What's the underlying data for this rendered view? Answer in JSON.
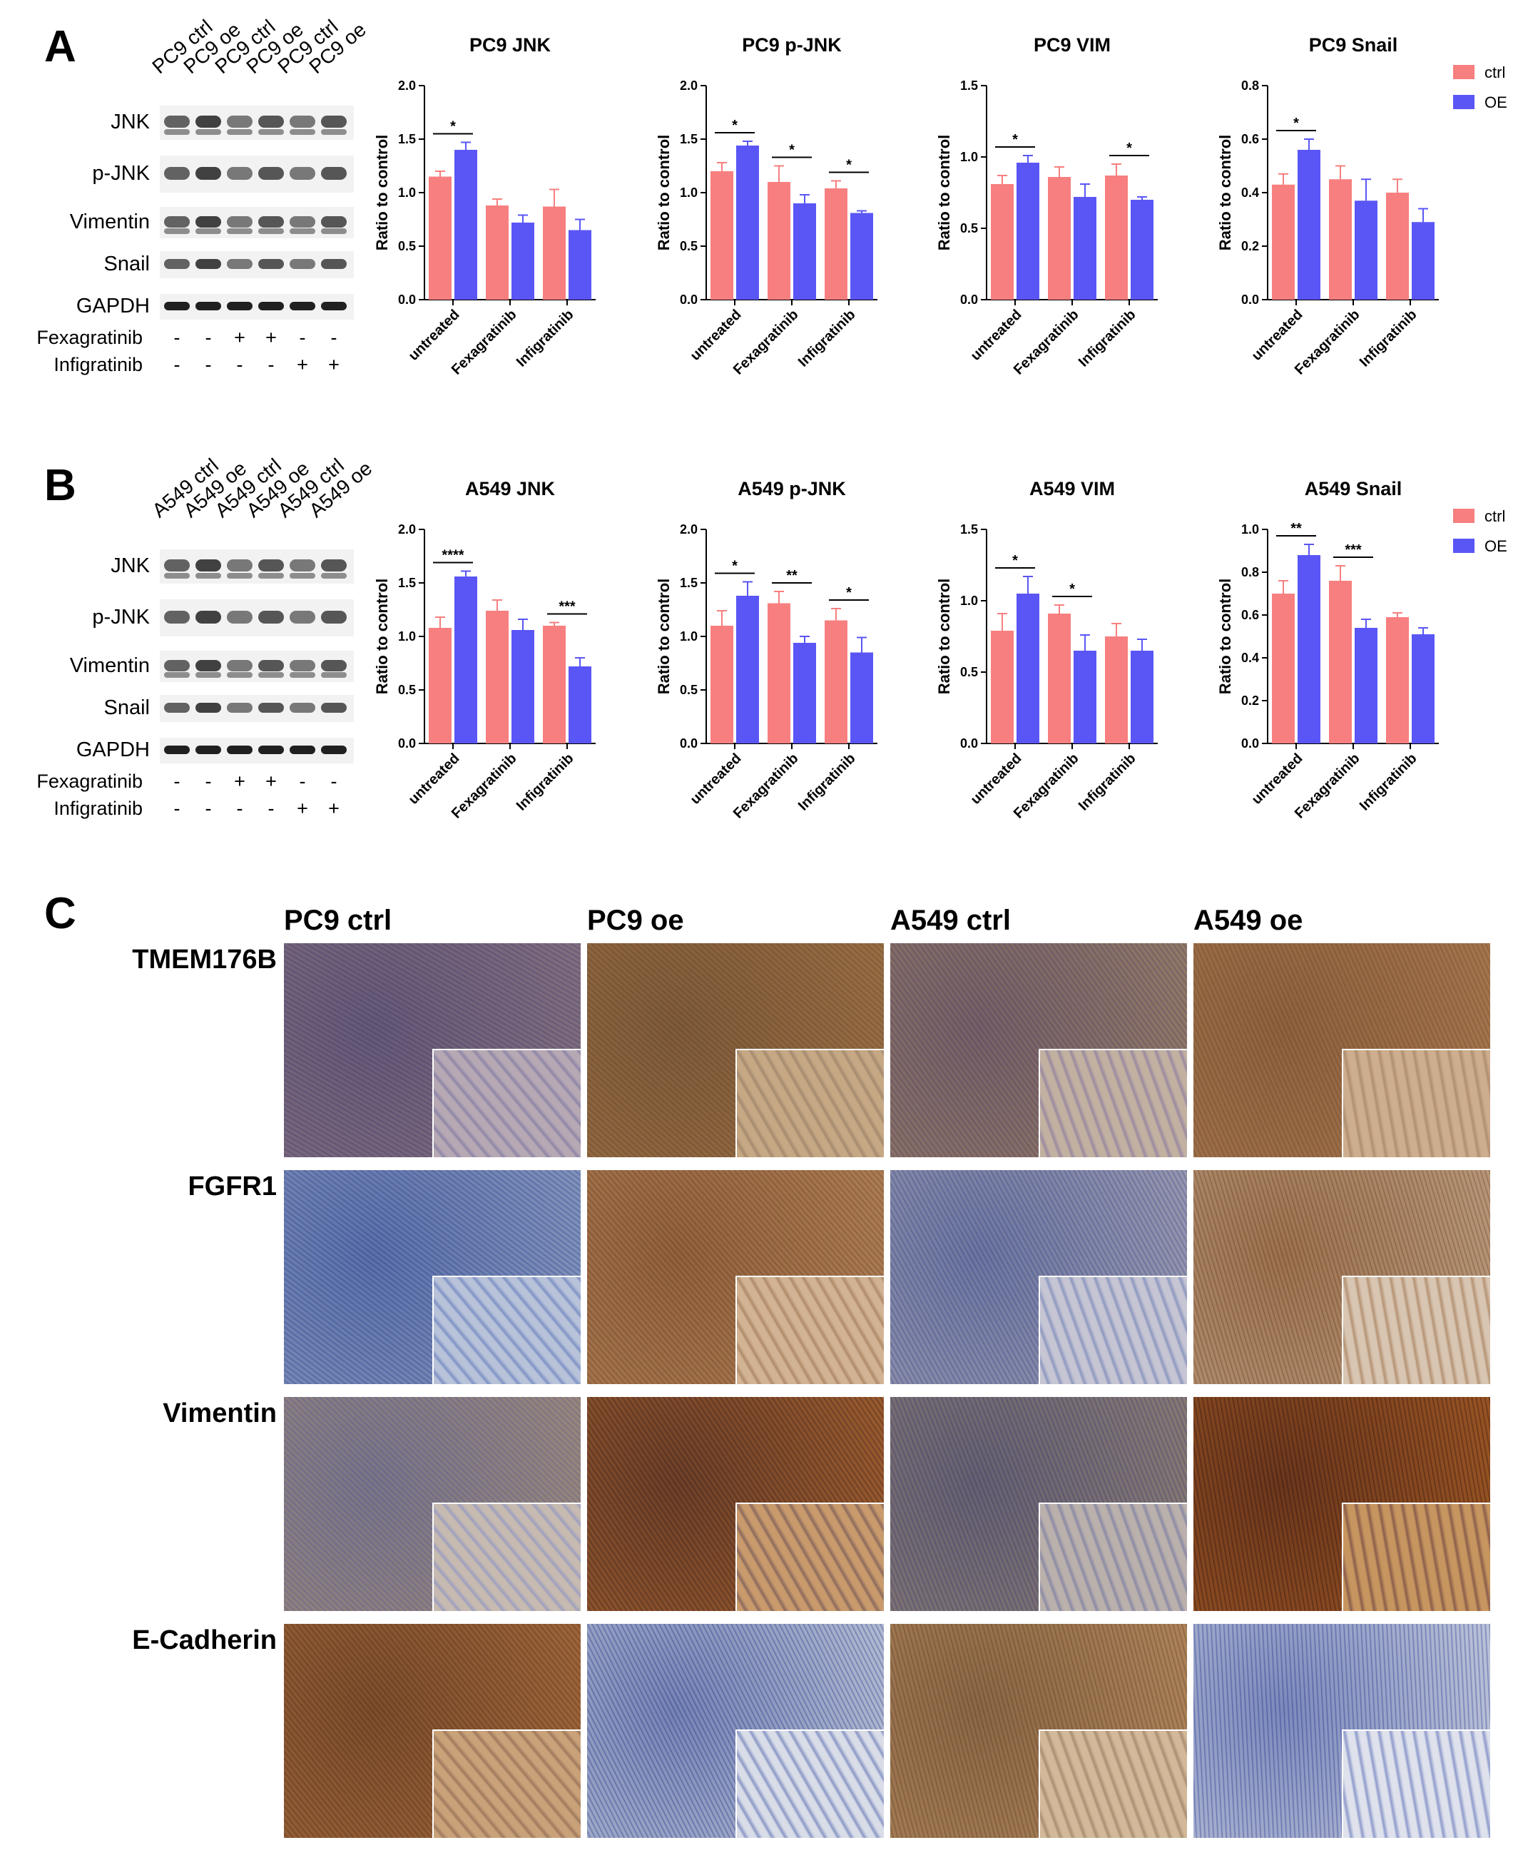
{
  "panels": {
    "A": {
      "letter": "A",
      "lanes": [
        "PC9 ctrl",
        "PC9 oe",
        "PC9 ctrl",
        "PC9 oe",
        "PC9 ctrl",
        "PC9 oe"
      ],
      "blots": [
        "JNK",
        "p-JNK",
        "Vimentin",
        "Snail",
        "GAPDH"
      ],
      "treatments": [
        {
          "name": "Fexagratinib",
          "signs": [
            "-",
            "-",
            "+",
            "+",
            "-",
            "-"
          ]
        },
        {
          "name": "Infigratinib",
          "signs": [
            "-",
            "-",
            "-",
            "-",
            "+",
            "+"
          ]
        }
      ]
    },
    "B": {
      "letter": "B",
      "lanes": [
        "A549 ctrl",
        "A549 oe",
        "A549 ctrl",
        "A549 oe",
        "A549 ctrl",
        "A549 oe"
      ],
      "blots": [
        "JNK",
        "p-JNK",
        "Vimentin",
        "Snail",
        "GAPDH"
      ],
      "treatments": [
        {
          "name": "Fexagratinib",
          "signs": [
            "-",
            "-",
            "+",
            "+",
            "-",
            "-"
          ]
        },
        {
          "name": "Infigratinib",
          "signs": [
            "-",
            "-",
            "-",
            "-",
            "+",
            "+"
          ]
        }
      ]
    },
    "C": {
      "letter": "C",
      "columns": [
        "PC9 ctrl",
        "PC9 oe",
        "A549 ctrl",
        "A549 oe"
      ],
      "rows": [
        "TMEM176B",
        "FGFR1",
        "Vimentin",
        "E-Cadherin"
      ]
    }
  },
  "colors": {
    "ctrl": "#f77f7f",
    "oe": "#5a56f5",
    "axis": "#000000"
  },
  "legend": {
    "ctrl": "ctrl",
    "oe": "OE"
  },
  "chart_data": [
    {
      "type": "bar",
      "title": "PC9 JNK",
      "ylabel": "Ratio to control",
      "ylim": [
        0,
        2.0
      ],
      "ticks": [
        "0.0",
        "0.5",
        "1.0",
        "1.5",
        "2.0"
      ],
      "categories": [
        "untreated",
        "Fexagratinib",
        "Infigratinib"
      ],
      "series": [
        {
          "name": "ctrl",
          "values": [
            1.15,
            0.88,
            0.87
          ],
          "errors": [
            0.05,
            0.06,
            0.16
          ]
        },
        {
          "name": "OE",
          "values": [
            1.4,
            0.72,
            0.65
          ],
          "errors": [
            0.07,
            0.07,
            0.1
          ]
        }
      ],
      "significance": [
        {
          "category": 0,
          "label": "*"
        }
      ],
      "legend": false
    },
    {
      "type": "bar",
      "title": "PC9 p-JNK",
      "ylabel": "Ratio to control",
      "ylim": [
        0,
        2.0
      ],
      "ticks": [
        "0.0",
        "0.5",
        "1.0",
        "1.5",
        "2.0"
      ],
      "categories": [
        "untreated",
        "Fexagratinib",
        "Infigratinib"
      ],
      "series": [
        {
          "name": "ctrl",
          "values": [
            1.2,
            1.1,
            1.04
          ],
          "errors": [
            0.08,
            0.15,
            0.07
          ]
        },
        {
          "name": "OE",
          "values": [
            1.44,
            0.9,
            0.81
          ],
          "errors": [
            0.04,
            0.08,
            0.02
          ]
        }
      ],
      "significance": [
        {
          "category": 0,
          "label": "*"
        },
        {
          "category": 1,
          "label": "*"
        },
        {
          "category": 2,
          "label": "*"
        }
      ],
      "legend": false
    },
    {
      "type": "bar",
      "title": "PC9 VIM",
      "ylabel": "Ratio to control",
      "ylim": [
        0,
        1.5
      ],
      "ticks": [
        "0.0",
        "0.5",
        "1.0",
        "1.5"
      ],
      "categories": [
        "untreated",
        "Fexagratinib",
        "Infigratinib"
      ],
      "series": [
        {
          "name": "ctrl",
          "values": [
            0.81,
            0.86,
            0.87
          ],
          "errors": [
            0.06,
            0.07,
            0.08
          ]
        },
        {
          "name": "OE",
          "values": [
            0.96,
            0.72,
            0.7
          ],
          "errors": [
            0.05,
            0.09,
            0.02
          ]
        }
      ],
      "significance": [
        {
          "category": 0,
          "label": "*"
        },
        {
          "category": 2,
          "label": "*"
        }
      ],
      "legend": false
    },
    {
      "type": "bar",
      "title": "PC9 Snail",
      "ylabel": "Ratio to control",
      "ylim": [
        0,
        0.8
      ],
      "ticks": [
        "0.0",
        "0.2",
        "0.4",
        "0.6",
        "0.8"
      ],
      "categories": [
        "untreated",
        "Fexagratinib",
        "Infigratinib"
      ],
      "series": [
        {
          "name": "ctrl",
          "values": [
            0.43,
            0.45,
            0.4
          ],
          "errors": [
            0.04,
            0.05,
            0.05
          ]
        },
        {
          "name": "OE",
          "values": [
            0.56,
            0.37,
            0.29
          ],
          "errors": [
            0.04,
            0.08,
            0.05
          ]
        }
      ],
      "significance": [
        {
          "category": 0,
          "label": "*"
        }
      ],
      "legend": true
    },
    {
      "type": "bar",
      "title": "A549 JNK",
      "ylabel": "Ratio to control",
      "ylim": [
        0,
        2.0
      ],
      "ticks": [
        "0.0",
        "0.5",
        "1.0",
        "1.5",
        "2.0"
      ],
      "categories": [
        "untreated",
        "Fexagratinib",
        "Infigratinib"
      ],
      "series": [
        {
          "name": "ctrl",
          "values": [
            1.08,
            1.24,
            1.1
          ],
          "errors": [
            0.1,
            0.1,
            0.03
          ]
        },
        {
          "name": "OE",
          "values": [
            1.56,
            1.06,
            0.72
          ],
          "errors": [
            0.05,
            0.1,
            0.08
          ]
        }
      ],
      "significance": [
        {
          "category": 0,
          "label": "****"
        },
        {
          "category": 2,
          "label": "***"
        }
      ],
      "legend": false
    },
    {
      "type": "bar",
      "title": "A549 p-JNK",
      "ylabel": "Ratio to control",
      "ylim": [
        0,
        2.0
      ],
      "ticks": [
        "0.0",
        "0.5",
        "1.0",
        "1.5",
        "2.0"
      ],
      "categories": [
        "untreated",
        "Fexagratinib",
        "Infigratinib"
      ],
      "series": [
        {
          "name": "ctrl",
          "values": [
            1.1,
            1.31,
            1.15
          ],
          "errors": [
            0.14,
            0.11,
            0.11
          ]
        },
        {
          "name": "OE",
          "values": [
            1.38,
            0.94,
            0.85
          ],
          "errors": [
            0.13,
            0.06,
            0.14
          ]
        }
      ],
      "significance": [
        {
          "category": 0,
          "label": "*"
        },
        {
          "category": 1,
          "label": "**"
        },
        {
          "category": 2,
          "label": "*"
        }
      ],
      "legend": false
    },
    {
      "type": "bar",
      "title": "A549 VIM",
      "ylabel": "Ratio to control",
      "ylim": [
        0,
        1.5
      ],
      "ticks": [
        "0.0",
        "0.5",
        "1.0",
        "1.5"
      ],
      "categories": [
        "untreated",
        "Fexagratinib",
        "Infigratinib"
      ],
      "series": [
        {
          "name": "ctrl",
          "values": [
            0.79,
            0.91,
            0.75
          ],
          "errors": [
            0.12,
            0.06,
            0.09
          ]
        },
        {
          "name": "OE",
          "values": [
            1.05,
            0.65,
            0.65
          ],
          "errors": [
            0.12,
            0.11,
            0.08
          ]
        }
      ],
      "significance": [
        {
          "category": 0,
          "label": "*"
        },
        {
          "category": 1,
          "label": "*"
        }
      ],
      "legend": false
    },
    {
      "type": "bar",
      "title": "A549 Snail",
      "ylabel": "Ratio to control",
      "ylim": [
        0,
        1.0
      ],
      "ticks": [
        "0.0",
        "0.2",
        "0.4",
        "0.6",
        "0.8",
        "1.0"
      ],
      "categories": [
        "untreated",
        "Fexagratinib",
        "Infigratinib"
      ],
      "series": [
        {
          "name": "ctrl",
          "values": [
            0.7,
            0.76,
            0.59
          ],
          "errors": [
            0.06,
            0.07,
            0.02
          ]
        },
        {
          "name": "OE",
          "values": [
            0.88,
            0.54,
            0.51
          ],
          "errors": [
            0.05,
            0.04,
            0.03
          ]
        }
      ],
      "significance": [
        {
          "category": 0,
          "label": "**"
        },
        {
          "category": 1,
          "label": "***"
        }
      ],
      "legend": true
    }
  ]
}
